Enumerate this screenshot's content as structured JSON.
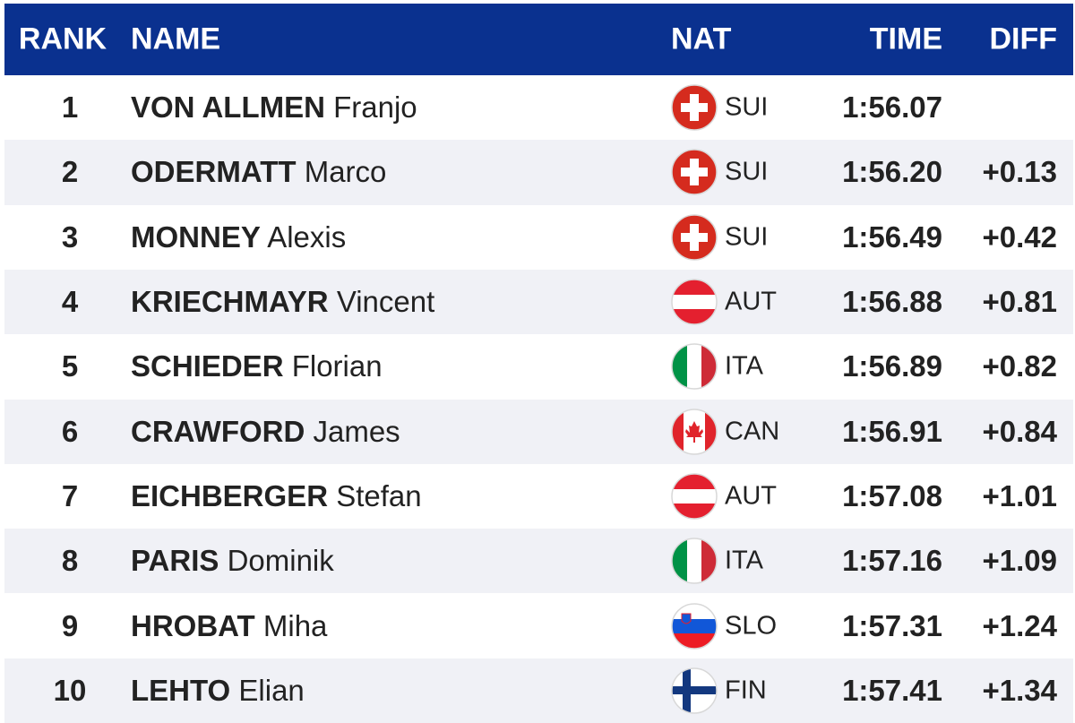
{
  "header": {
    "rank": "RANK",
    "name": "NAME",
    "nat": "NAT",
    "time": "TIME",
    "diff": "DIFF"
  },
  "rows": [
    {
      "rank": "1",
      "surname": "VON ALLMEN",
      "first_name": "Franjo",
      "nat": "SUI",
      "time": "1:56.07"
    },
    {
      "rank": "2",
      "surname": "ODERMATT",
      "first_name": "Marco",
      "nat": "SUI",
      "time": "1:56.20",
      "diff": "+0.13"
    },
    {
      "rank": "3",
      "surname": "MONNEY",
      "first_name": "Alexis",
      "nat": "SUI",
      "time": "1:56.49",
      "diff": "+0.42"
    },
    {
      "rank": "4",
      "surname": "KRIECHMAYR",
      "first_name": "Vincent",
      "nat": "AUT",
      "time": "1:56.88",
      "diff": "+0.81"
    },
    {
      "rank": "5",
      "surname": "SCHIEDER",
      "first_name": "Florian",
      "nat": "ITA",
      "time": "1:56.89",
      "diff": "+0.82"
    },
    {
      "rank": "6",
      "surname": "CRAWFORD",
      "first_name": "James",
      "nat": "CAN",
      "time": "1:56.91",
      "diff": "+0.84"
    },
    {
      "rank": "7",
      "surname": "EICHBERGER",
      "first_name": "Stefan",
      "nat": "AUT",
      "time": "1:57.08",
      "diff": "+1.01"
    },
    {
      "rank": "8",
      "surname": "PARIS",
      "first_name": "Dominik",
      "nat": "ITA",
      "time": "1:57.16",
      "diff": "+1.09"
    },
    {
      "rank": "9",
      "surname": "HROBAT",
      "first_name": "Miha",
      "nat": "SLO",
      "time": "1:57.31",
      "diff": "+1.24"
    },
    {
      "rank": "10",
      "surname": "LEHTO",
      "first_name": "Elian",
      "nat": "FIN",
      "time": "1:57.41",
      "diff": "+1.34"
    }
  ]
}
